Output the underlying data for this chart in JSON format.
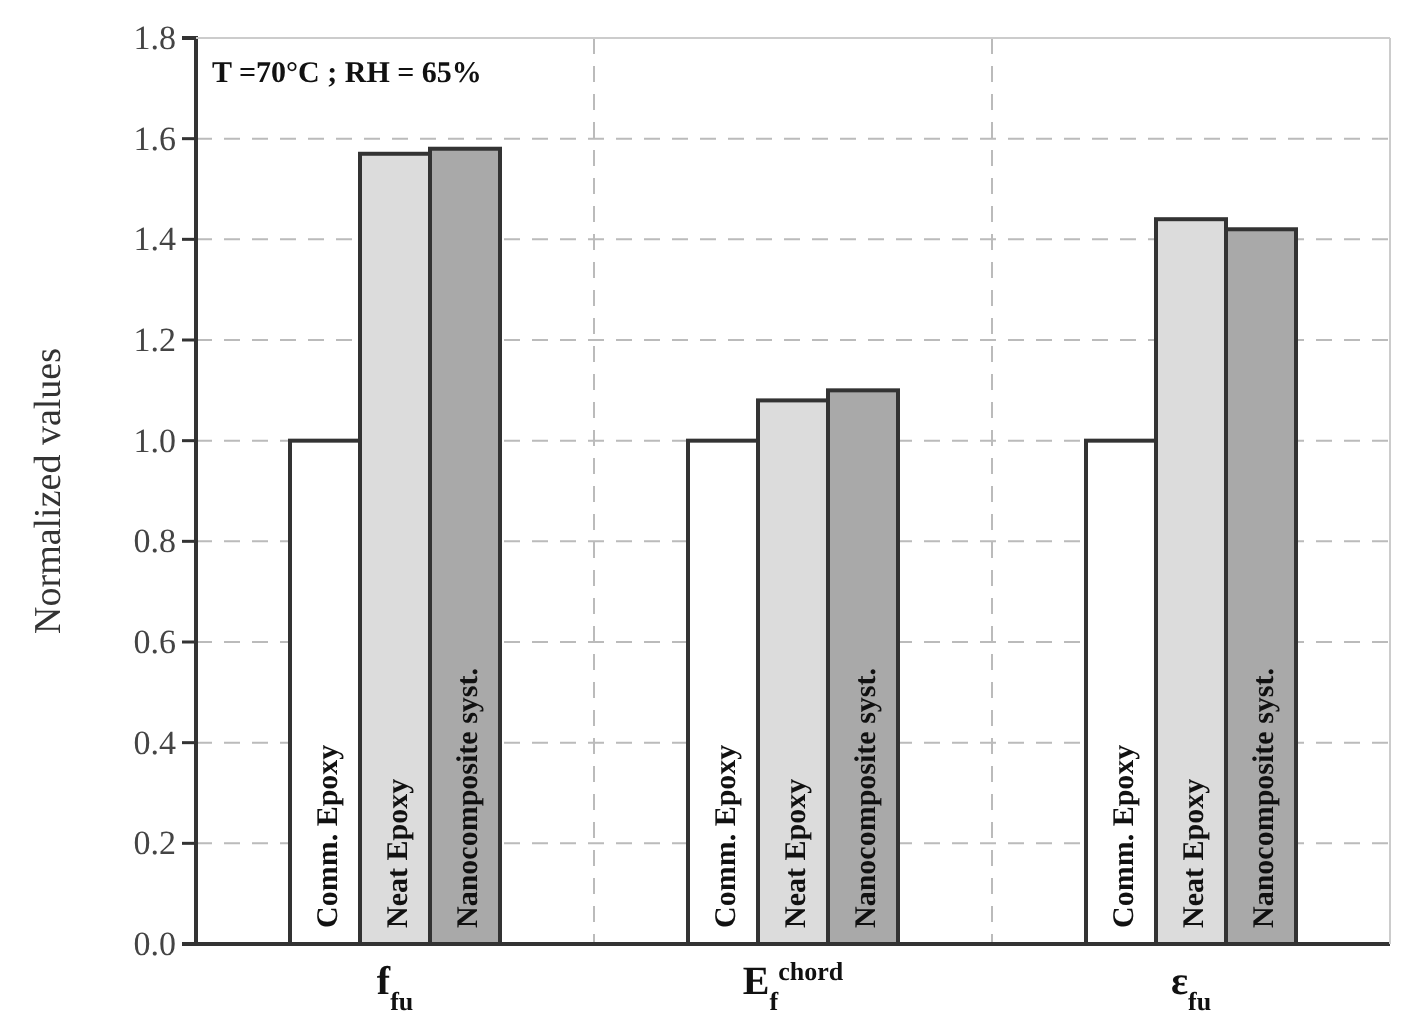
{
  "chart_data": {
    "type": "bar",
    "ylabel": "Normalized values",
    "categories": [
      "f$_{fu}$",
      "E$_{f}$$^{chord}$",
      "ε$_{fu}$"
    ],
    "series": [
      {
        "name": "Comm. Epoxy",
        "color": "#ffffff",
        "values": [
          1.0,
          1.0,
          1.0
        ]
      },
      {
        "name": "Neat Epoxy",
        "color": "#dcdcdc",
        "values": [
          1.57,
          1.08,
          1.44
        ]
      },
      {
        "name": "Nanocomposite syst.",
        "color": "#a9a9a9",
        "values": [
          1.58,
          1.1,
          1.42
        ]
      }
    ],
    "ylim": [
      0,
      1.8
    ],
    "yticks": [
      {
        "value": 0,
        "label": "0.0"
      },
      {
        "value": 0.2,
        "label": "0.2"
      },
      {
        "value": 0.4,
        "label": "0.4"
      },
      {
        "value": 0.6,
        "label": "0.6"
      },
      {
        "value": 0.8,
        "label": "0.8"
      },
      {
        "value": 1.0,
        "label": "1.0"
      },
      {
        "value": 1.2,
        "label": "1.2"
      },
      {
        "value": 1.4,
        "label": "1.4"
      },
      {
        "value": 1.6,
        "label": "1.6"
      },
      {
        "value": 1.8,
        "label": "1.8"
      }
    ],
    "grid": true,
    "annotations": [
      "T =70°C ; RH = 65%"
    ]
  }
}
